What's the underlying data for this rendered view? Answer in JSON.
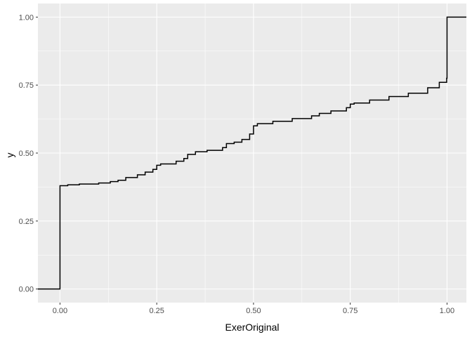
{
  "chart_data": {
    "type": "line",
    "step": true,
    "title": "",
    "xlabel": "ExerOriginal",
    "ylabel": "y",
    "xlim": [
      -0.057,
      1.05
    ],
    "ylim": [
      -0.05,
      1.05
    ],
    "x_ticks": [
      0.0,
      0.25,
      0.5,
      0.75,
      1.0
    ],
    "x_tick_labels": [
      "0.00",
      "0.25",
      "0.50",
      "0.75",
      "1.00"
    ],
    "y_ticks": [
      0.0,
      0.25,
      0.5,
      0.75,
      1.0
    ],
    "y_tick_labels": [
      "0.00",
      "0.25",
      "0.50",
      "0.75",
      "1.00"
    ],
    "grid": true,
    "legend": "none",
    "colors": {
      "panel": "#ebebeb",
      "grid": "#ffffff",
      "line": "#000000"
    },
    "series": [
      {
        "x": [
          -0.057,
          0.0,
          0.0,
          0.02,
          0.05,
          0.1,
          0.13,
          0.15,
          0.17,
          0.2,
          0.22,
          0.24,
          0.25,
          0.26,
          0.3,
          0.32,
          0.33,
          0.35,
          0.38,
          0.42,
          0.43,
          0.45,
          0.47,
          0.49,
          0.5,
          0.51,
          0.55,
          0.6,
          0.65,
          0.67,
          0.7,
          0.74,
          0.75,
          0.76,
          0.8,
          0.85,
          0.9,
          0.95,
          0.98,
          0.999,
          1.0,
          1.05
        ],
        "y": [
          0.0,
          0.0,
          0.38,
          0.383,
          0.386,
          0.39,
          0.395,
          0.4,
          0.41,
          0.42,
          0.43,
          0.44,
          0.455,
          0.46,
          0.47,
          0.48,
          0.495,
          0.505,
          0.51,
          0.52,
          0.535,
          0.54,
          0.55,
          0.57,
          0.6,
          0.608,
          0.617,
          0.627,
          0.637,
          0.646,
          0.655,
          0.667,
          0.68,
          0.684,
          0.695,
          0.708,
          0.72,
          0.74,
          0.76,
          0.775,
          1.0,
          1.0
        ]
      }
    ]
  }
}
